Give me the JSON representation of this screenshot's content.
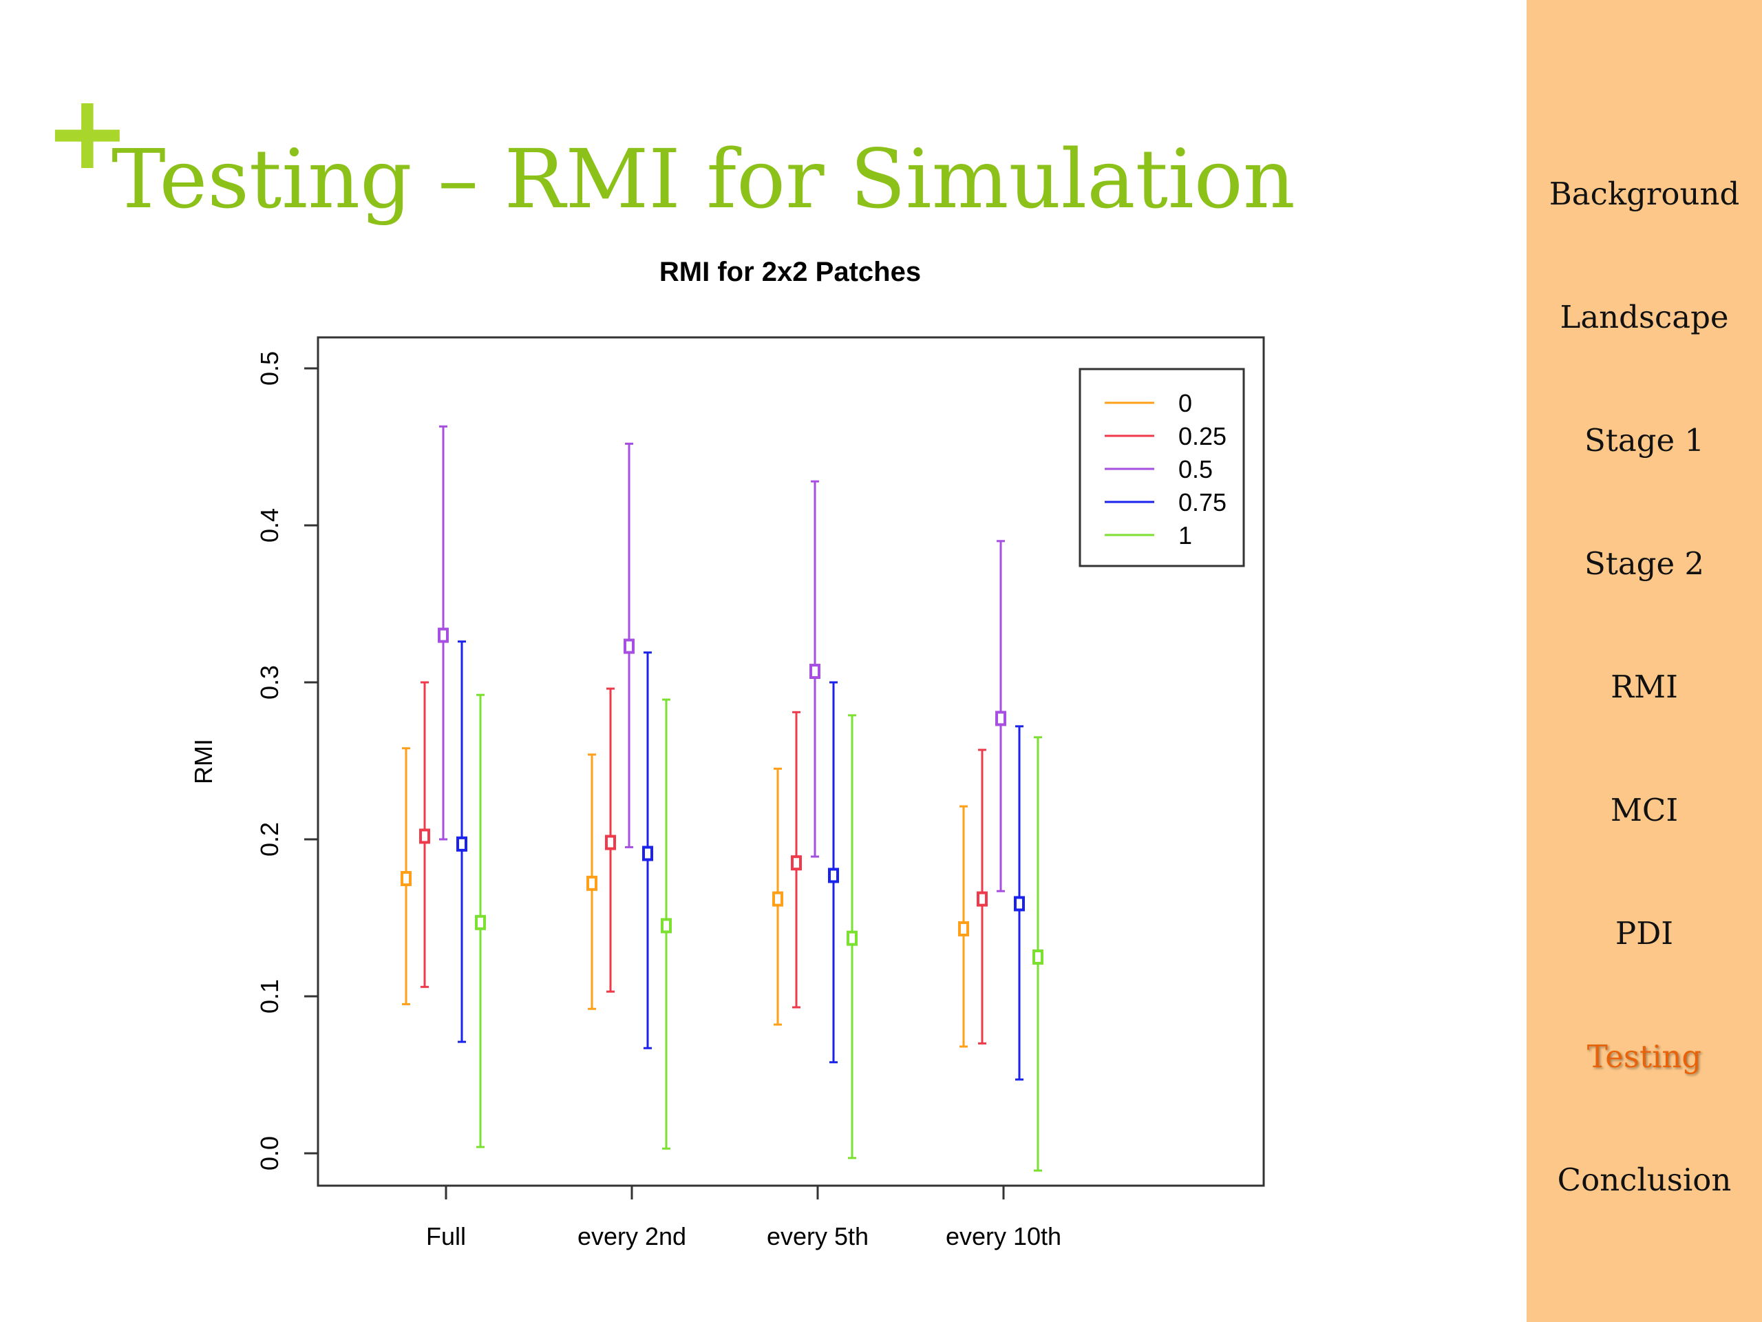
{
  "slide": {
    "plus_glyph": "+",
    "title": "Testing – RMI for Simulation"
  },
  "sidebar": {
    "items": [
      {
        "label": "Background",
        "active": false
      },
      {
        "label": "Landscape",
        "active": false
      },
      {
        "label": "Stage 1",
        "active": false
      },
      {
        "label": "Stage 2",
        "active": false
      },
      {
        "label": "RMI",
        "active": false
      },
      {
        "label": "MCI",
        "active": false
      },
      {
        "label": "PDI",
        "active": false
      },
      {
        "label": "Testing",
        "active": true
      },
      {
        "label": "Conclusion",
        "active": false
      }
    ],
    "background_color": "#fcc788",
    "active_color": "#e8620a"
  },
  "chart_data": {
    "type": "scatter",
    "title": "RMI for 2x2 Patches",
    "xlabel": "",
    "ylabel": "RMI",
    "categories": [
      "Full",
      "every 2nd",
      "every 5th",
      "every 10th"
    ],
    "ylim": [
      -0.02,
      0.52
    ],
    "yticks": [
      "0.0",
      "0.1",
      "0.2",
      "0.3",
      "0.4",
      "0.5"
    ],
    "grid": false,
    "legend_position": "top-right",
    "series": [
      {
        "name": "0",
        "color": "#ff9f1a",
        "values": [
          0.175,
          0.172,
          0.162,
          0.143
        ],
        "lower": [
          0.095,
          0.092,
          0.082,
          0.068
        ],
        "upper": [
          0.258,
          0.254,
          0.245,
          0.221
        ]
      },
      {
        "name": "0.25",
        "color": "#ee3a4a",
        "values": [
          0.202,
          0.198,
          0.185,
          0.162
        ],
        "lower": [
          0.106,
          0.103,
          0.093,
          0.07
        ],
        "upper": [
          0.3,
          0.296,
          0.281,
          0.257
        ]
      },
      {
        "name": "0.5",
        "color": "#a64fe0",
        "values": [
          0.33,
          0.323,
          0.307,
          0.277
        ],
        "lower": [
          0.2,
          0.195,
          0.189,
          0.167
        ],
        "upper": [
          0.463,
          0.452,
          0.428,
          0.39
        ]
      },
      {
        "name": "0.75",
        "color": "#1a22ee",
        "values": [
          0.197,
          0.191,
          0.177,
          0.159
        ],
        "lower": [
          0.071,
          0.067,
          0.058,
          0.047
        ],
        "upper": [
          0.326,
          0.319,
          0.3,
          0.272
        ]
      },
      {
        "name": "1",
        "color": "#7be030",
        "values": [
          0.147,
          0.145,
          0.137,
          0.125
        ],
        "lower": [
          0.004,
          0.003,
          -0.003,
          -0.011
        ],
        "upper": [
          0.292,
          0.289,
          0.279,
          0.265
        ]
      }
    ]
  }
}
